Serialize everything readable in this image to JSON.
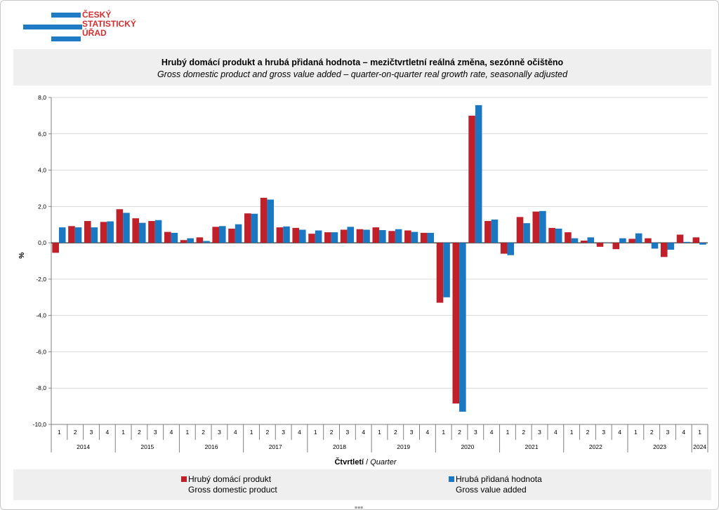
{
  "logo": {
    "alt": "Český statistický úřad",
    "line1": "ČESKÝ",
    "line2": "STATISTICKÝ",
    "line3": "ÚŘAD"
  },
  "colors": {
    "gdp": "#c0202a",
    "gva": "#1a78c2",
    "grid": "#d9d9d9",
    "axis": "#808080"
  },
  "chart_data": {
    "type": "bar",
    "title": "Hrubý domácí  produkt a hrubá přidaná hodnota – mezičtvrtletní  reálná změna, sezónně očištěno",
    "subtitle": "Gross domestic product and gross value added – quarter-on-quarter real growth rate, seasonally adjusted",
    "ylabel": "%",
    "xlabel_cz": "Čtvrtletí",
    "xlabel_sep": " / ",
    "xlabel_en": "Quarter",
    "ylim": [
      -10,
      8
    ],
    "yticks": [
      "-10,0",
      "-8,0",
      "-6,0",
      "-4,0",
      "-2,0",
      "0,0",
      "2,0",
      "4,0",
      "6,0",
      "8,0"
    ],
    "grid": true,
    "legend_position": "bottom",
    "categories": [
      "1",
      "2",
      "3",
      "4",
      "1",
      "2",
      "3",
      "4",
      "1",
      "2",
      "3",
      "4",
      "1",
      "2",
      "3",
      "4",
      "1",
      "2",
      "3",
      "4",
      "1",
      "2",
      "3",
      "4",
      "1",
      "2",
      "3",
      "4",
      "1",
      "2",
      "3",
      "4",
      "1",
      "2",
      "3",
      "4",
      "1",
      "2",
      "3",
      "4",
      "1"
    ],
    "years": [
      {
        "label": "2014",
        "count": 4
      },
      {
        "label": "2015",
        "count": 4
      },
      {
        "label": "2016",
        "count": 4
      },
      {
        "label": "2017",
        "count": 4
      },
      {
        "label": "2018",
        "count": 4
      },
      {
        "label": "2019",
        "count": 4
      },
      {
        "label": "2020",
        "count": 4
      },
      {
        "label": "2021",
        "count": 4
      },
      {
        "label": "2022",
        "count": 4
      },
      {
        "label": "2023",
        "count": 4
      },
      {
        "label": "2024",
        "count": 1
      }
    ],
    "series": [
      {
        "name": "Hrubý domácí produkt",
        "name_en": "Gross domestic product",
        "values": [
          -0.55,
          0.92,
          1.2,
          1.15,
          1.85,
          1.35,
          1.2,
          0.6,
          0.15,
          0.3,
          0.88,
          0.78,
          1.62,
          2.48,
          0.85,
          0.82,
          0.5,
          0.58,
          0.72,
          0.75,
          0.85,
          0.65,
          0.68,
          0.55,
          -3.3,
          -8.85,
          7.0,
          1.2,
          -0.6,
          1.42,
          1.72,
          0.82,
          0.58,
          0.12,
          -0.22,
          -0.35,
          0.22,
          0.25,
          -0.78,
          0.45,
          0.3
        ]
      },
      {
        "name": "Hrubá přidaná hodnota",
        "name_en": "Gross value added",
        "values": [
          0.85,
          0.85,
          0.85,
          1.18,
          1.65,
          1.1,
          1.25,
          0.55,
          0.25,
          0.1,
          0.92,
          1.02,
          1.6,
          2.38,
          0.9,
          0.72,
          0.68,
          0.58,
          0.88,
          0.72,
          0.7,
          0.75,
          0.6,
          0.55,
          -3.0,
          -9.3,
          7.58,
          1.28,
          -0.68,
          1.08,
          1.75,
          0.78,
          0.25,
          0.3,
          0.0,
          0.25,
          0.52,
          -0.32,
          -0.38,
          0.05,
          -0.1
        ]
      }
    ]
  }
}
